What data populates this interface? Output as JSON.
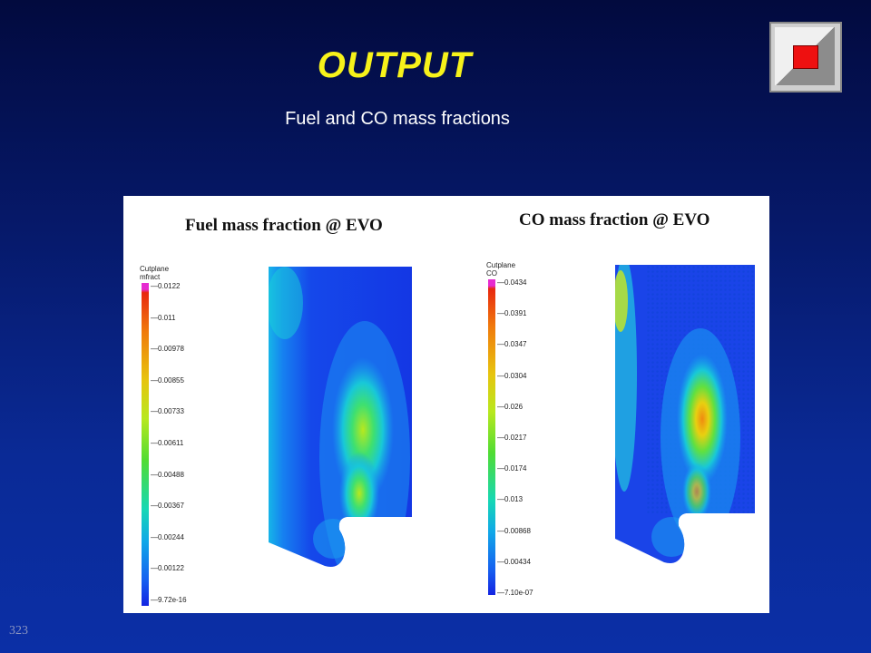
{
  "slide": {
    "title": "OUTPUT",
    "subtitle": "Fuel and CO mass fractions",
    "page_number": "323"
  },
  "colors": {
    "background": "#0a2a96",
    "title": "#f7f21a",
    "home_button_square": "#ee1010"
  },
  "home_button": {
    "icon": "home-square-icon"
  },
  "fuel_panel": {
    "title": "Fuel mass fraction @ EVO",
    "colorbar_label_1": "Cutplane",
    "colorbar_label_2": "mfract",
    "ticks": [
      "0.0122",
      "0.011",
      "0.00978",
      "0.00855",
      "0.00733",
      "0.00611",
      "0.00488",
      "0.00367",
      "0.00244",
      "0.00122",
      "9.72e-16"
    ]
  },
  "co_panel": {
    "title": "CO mass fraction @ EVO",
    "colorbar_label_1": "Cutplane",
    "colorbar_label_2": "CO",
    "ticks": [
      "0.0434",
      "0.0391",
      "0.0347",
      "0.0304",
      "0.026",
      "0.0217",
      "0.0174",
      "0.013",
      "0.00868",
      "0.00434",
      "7.10e-07"
    ]
  }
}
